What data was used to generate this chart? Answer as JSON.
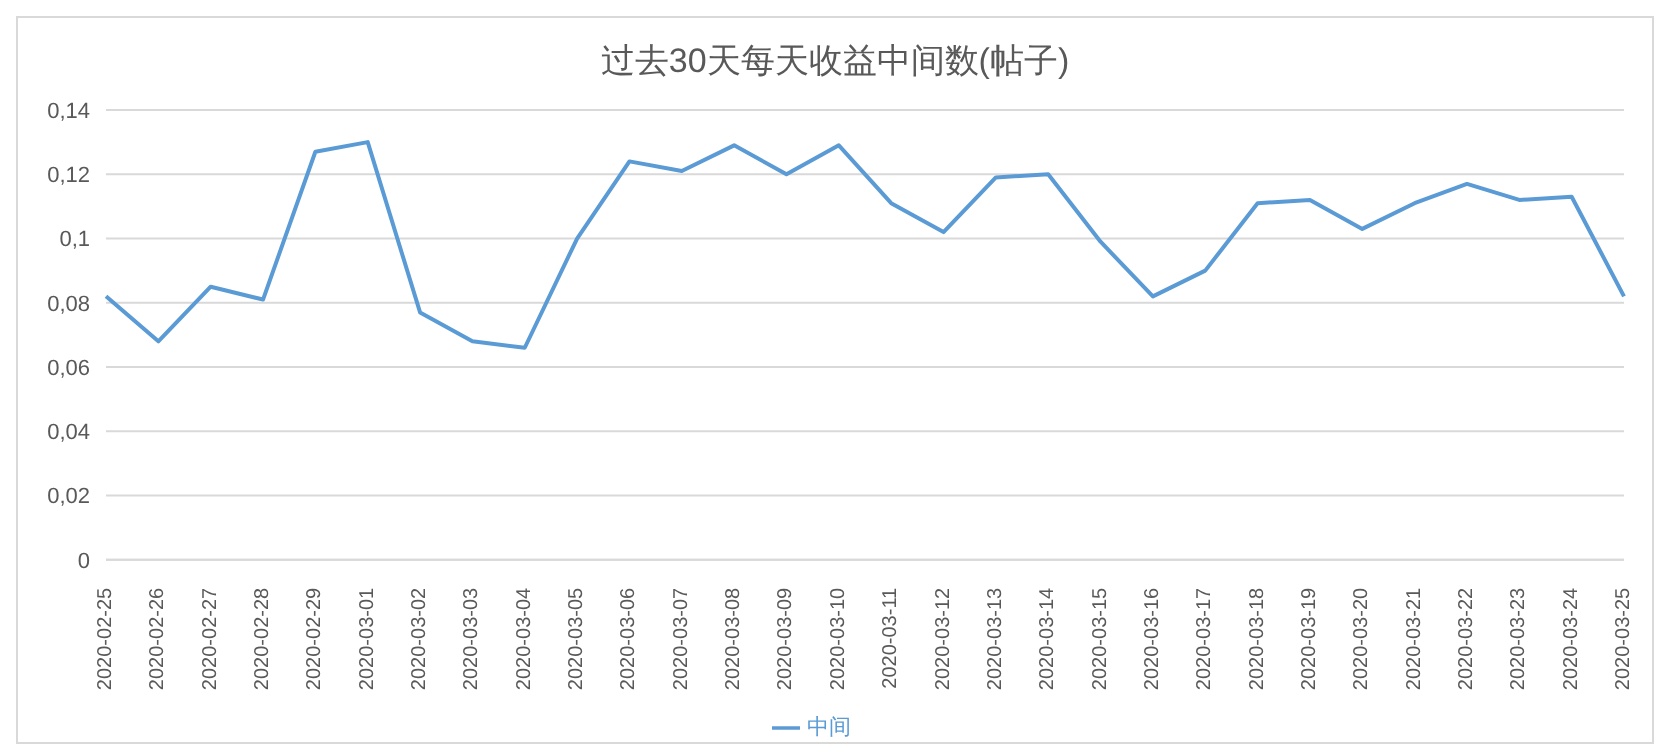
{
  "chart_data": {
    "type": "line",
    "title": "过去30天每天收益中间数(帖子)",
    "categories": [
      "2020-02-25",
      "2020-02-26",
      "2020-02-27",
      "2020-02-28",
      "2020-02-29",
      "2020-03-01",
      "2020-03-02",
      "2020-03-03",
      "2020-03-04",
      "2020-03-05",
      "2020-03-06",
      "2020-03-07",
      "2020-03-08",
      "2020-03-09",
      "2020-03-10",
      "2020-03-11",
      "2020-03-12",
      "2020-03-13",
      "2020-03-14",
      "2020-03-15",
      "2020-03-16",
      "2020-03-17",
      "2020-03-18",
      "2020-03-19",
      "2020-03-20",
      "2020-03-21",
      "2020-03-22",
      "2020-03-23",
      "2020-03-24",
      "2020-03-25"
    ],
    "series": [
      {
        "name": "中间",
        "color": "#5b9bd5",
        "values": [
          0.082,
          0.068,
          0.085,
          0.081,
          0.127,
          0.13,
          0.077,
          0.068,
          0.066,
          0.1,
          0.124,
          0.121,
          0.129,
          0.12,
          0.129,
          0.111,
          0.102,
          0.119,
          0.12,
          0.099,
          0.082,
          0.09,
          0.111,
          0.112,
          0.103,
          0.111,
          0.117,
          0.112,
          0.113,
          0.082
        ]
      }
    ],
    "ylim": [
      0,
      0.14
    ],
    "yticks": [
      {
        "value": 0,
        "label": "0"
      },
      {
        "value": 0.02,
        "label": "0,02"
      },
      {
        "value": 0.04,
        "label": "0,04"
      },
      {
        "value": 0.06,
        "label": "0,06"
      },
      {
        "value": 0.08,
        "label": "0,08"
      },
      {
        "value": 0.1,
        "label": "0,1"
      },
      {
        "value": 0.12,
        "label": "0,12"
      },
      {
        "value": 0.14,
        "label": "0,14"
      }
    ],
    "grid": "y",
    "legend": "bottom",
    "marker": "none",
    "line_style": "solid"
  }
}
